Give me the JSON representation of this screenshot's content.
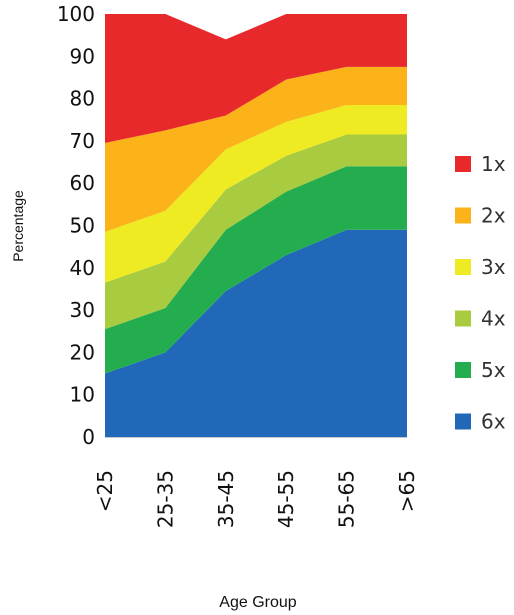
{
  "chart_data": {
    "type": "area",
    "stacked": true,
    "xlabel": "Age Group",
    "ylabel": "Percentage",
    "ylim": [
      0,
      100
    ],
    "yticks": [
      "0",
      "10",
      "20",
      "30",
      "40",
      "50",
      "60",
      "70",
      "80",
      "90",
      "100"
    ],
    "categories": [
      "<25",
      "25-35",
      "35-45",
      "45-55",
      "55-65",
      ">65"
    ],
    "legend_position": "right",
    "grid": false,
    "series": [
      {
        "name": "6x",
        "color": "#2268b8",
        "values": [
          15,
          20,
          34.5,
          43,
          49,
          49
        ]
      },
      {
        "name": "5x",
        "color": "#24ad4e",
        "values": [
          10.5,
          10.5,
          14.5,
          15,
          15,
          15
        ]
      },
      {
        "name": "4x",
        "color": "#a9cb3f",
        "values": [
          11,
          11,
          9.5,
          8.5,
          7.5,
          7.5
        ]
      },
      {
        "name": "3x",
        "color": "#eeeb22",
        "values": [
          12,
          12,
          9.5,
          8,
          7,
          7
        ]
      },
      {
        "name": "2x",
        "color": "#fbb319",
        "values": [
          21,
          19,
          8,
          10,
          9,
          9
        ]
      },
      {
        "name": "1x",
        "color": "#e8292c",
        "values": [
          30.5,
          27.5,
          18,
          15.5,
          12.5,
          12.5
        ]
      }
    ]
  }
}
